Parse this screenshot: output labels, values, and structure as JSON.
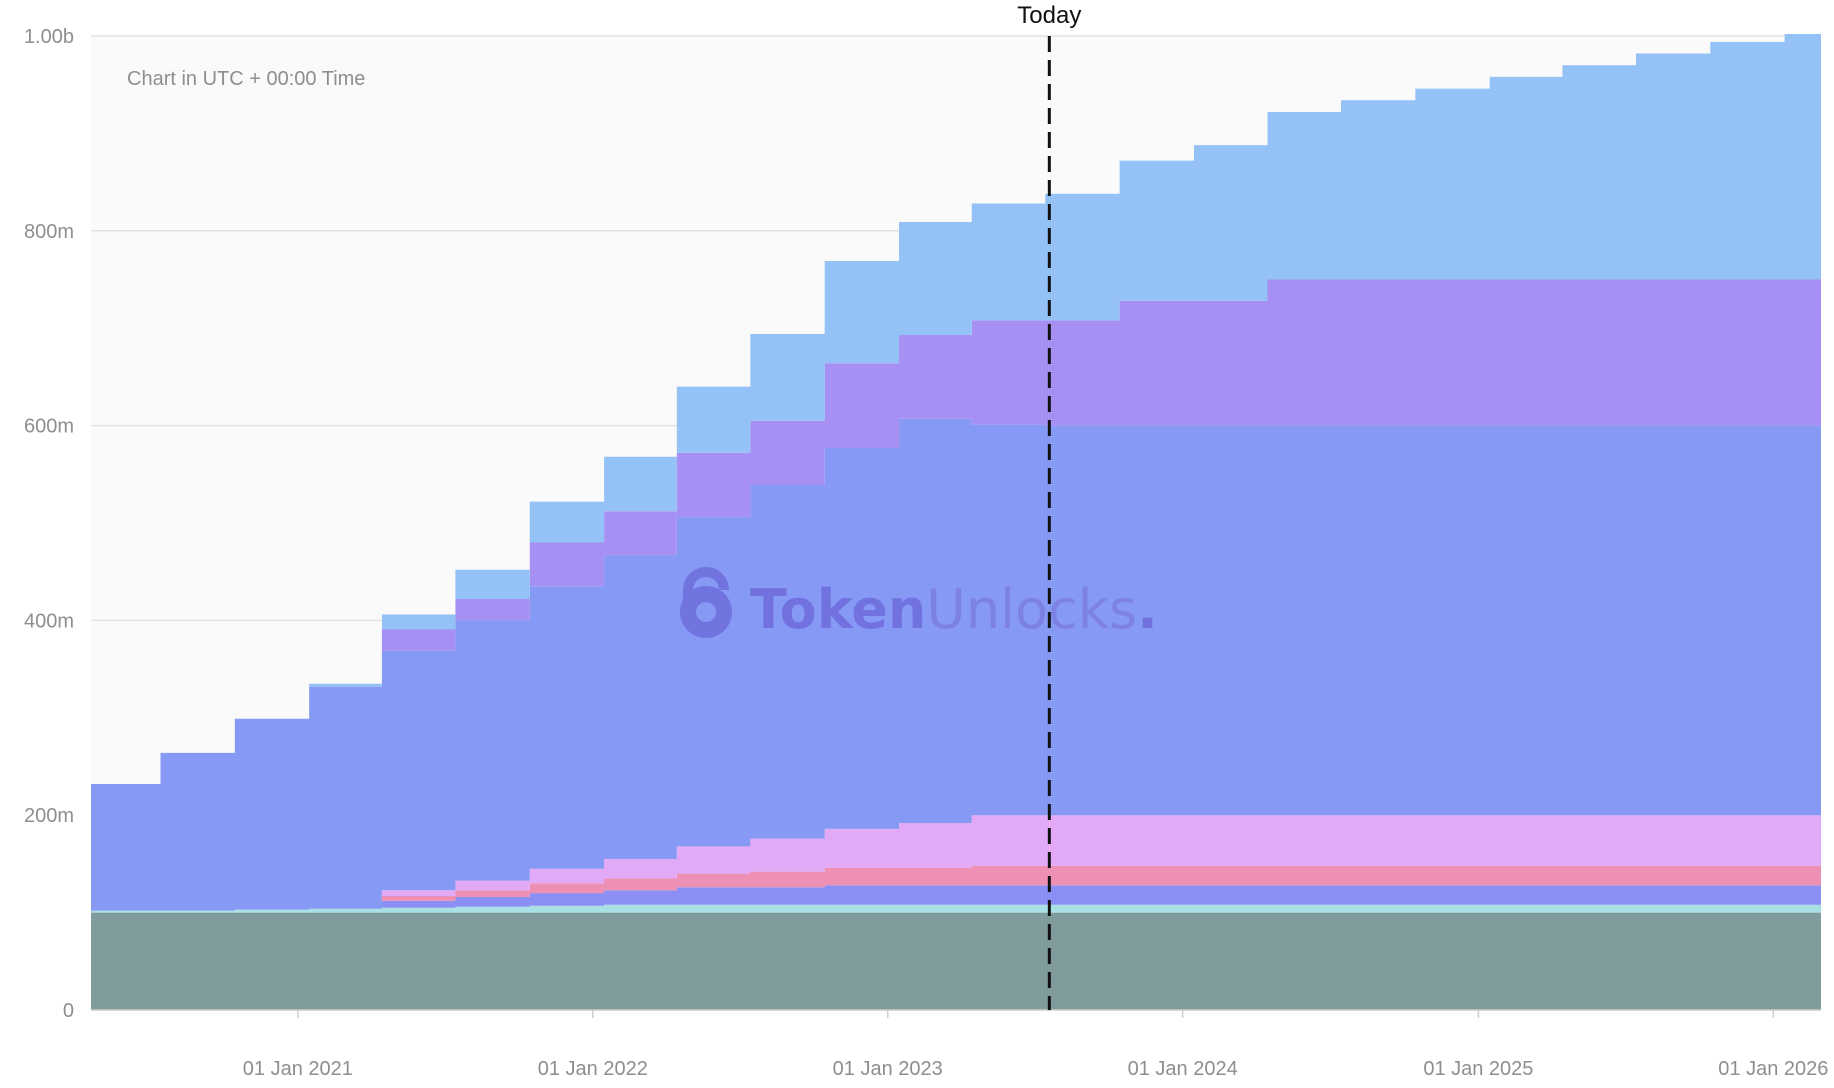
{
  "chart_data": {
    "type": "area",
    "stacked": true,
    "step": true,
    "note": "Chart in UTC + 00:00 Time",
    "watermark": {
      "brand_bold": "Token",
      "brand_light": "Unlocks",
      "suffix": "."
    },
    "today": {
      "label": "Today",
      "date": "2023-07-20"
    },
    "x_range": [
      "2020-04-20",
      "2026-03-01"
    ],
    "ylim": [
      0,
      1000000000
    ],
    "y_ticks": [
      {
        "value": 0,
        "label": "0"
      },
      {
        "value": 200000000,
        "label": "200m"
      },
      {
        "value": 400000000,
        "label": "400m"
      },
      {
        "value": 600000000,
        "label": "600m"
      },
      {
        "value": 800000000,
        "label": "800m"
      },
      {
        "value": 1000000000,
        "label": "1.00b"
      }
    ],
    "x_ticks": [
      {
        "date": "2021-01-01",
        "label": "01 Jan 2021"
      },
      {
        "date": "2022-01-01",
        "label": "01 Jan 2022"
      },
      {
        "date": "2023-01-01",
        "label": "01 Jan 2023"
      },
      {
        "date": "2024-01-01",
        "label": "01 Jan 2024"
      },
      {
        "date": "2025-01-01",
        "label": "01 Jan 2025"
      },
      {
        "date": "2026-01-01",
        "label": "01 Jan 2026"
      }
    ],
    "grid": true,
    "legend": "none",
    "x": [
      "2020-04-20",
      "2020-07-15",
      "2020-10-15",
      "2021-01-15",
      "2021-04-15",
      "2021-07-15",
      "2021-10-15",
      "2022-01-15",
      "2022-04-15",
      "2022-07-15",
      "2022-10-15",
      "2023-01-15",
      "2023-04-15",
      "2023-07-15",
      "2023-10-15",
      "2024-01-15",
      "2024-04-15",
      "2024-07-15",
      "2024-10-15",
      "2025-01-15",
      "2025-04-15",
      "2025-07-15",
      "2025-10-15",
      "2026-01-15"
    ],
    "series": [
      {
        "color": "#7f9b9b",
        "values": [
          100000000,
          100000000,
          100000000,
          100000000,
          100000000,
          100000000,
          100000000,
          100000000,
          100000000,
          100000000,
          100000000,
          100000000,
          100000000,
          100000000,
          100000000,
          100000000,
          100000000,
          100000000,
          100000000,
          100000000,
          100000000,
          100000000,
          100000000,
          100000000
        ]
      },
      {
        "color": "#a8e0e4",
        "values": [
          2000000,
          2000000,
          3000000,
          4000000,
          5000000,
          6000000,
          7000000,
          8000000,
          8000000,
          8000000,
          8000000,
          8000000,
          8000000,
          8000000,
          8000000,
          8000000,
          8000000,
          8000000,
          8000000,
          8000000,
          8000000,
          8000000,
          8000000,
          8000000
        ]
      },
      {
        "color": "#8b8ef2",
        "values": [
          0,
          0,
          0,
          0,
          7000000,
          10000000,
          13000000,
          15000000,
          18000000,
          18000000,
          20000000,
          20000000,
          20000000,
          20000000,
          20000000,
          20000000,
          20000000,
          20000000,
          20000000,
          20000000,
          20000000,
          20000000,
          20000000,
          20000000
        ]
      },
      {
        "color": "#ee8fb4",
        "values": [
          0,
          0,
          0,
          0,
          5000000,
          7000000,
          10000000,
          12000000,
          14000000,
          16000000,
          18000000,
          18000000,
          20000000,
          20000000,
          20000000,
          20000000,
          20000000,
          20000000,
          20000000,
          20000000,
          20000000,
          20000000,
          20000000,
          20000000
        ]
      },
      {
        "color": "#e2aaf6",
        "values": [
          0,
          0,
          0,
          0,
          6000000,
          10000000,
          15000000,
          20000000,
          28000000,
          34000000,
          40000000,
          46000000,
          52000000,
          52000000,
          52000000,
          52000000,
          52000000,
          52000000,
          52000000,
          52000000,
          52000000,
          52000000,
          52000000,
          52000000
        ]
      },
      {
        "color": "#8699f4",
        "values": [
          130000000,
          162000000,
          196000000,
          228000000,
          246000000,
          267000000,
          290000000,
          312000000,
          338000000,
          363000000,
          391000000,
          415000000,
          401000000,
          400000000,
          400000000,
          400000000,
          400000000,
          400000000,
          400000000,
          400000000,
          400000000,
          400000000,
          400000000,
          400000000
        ]
      },
      {
        "color": "#a790f4",
        "values": [
          0,
          0,
          0,
          0,
          22000000,
          22000000,
          45000000,
          45000000,
          66000000,
          66000000,
          87000000,
          86000000,
          107000000,
          108000000,
          128000000,
          128000000,
          150000000,
          150000000,
          150000000,
          150000000,
          150000000,
          150000000,
          150000000,
          150000000
        ]
      },
      {
        "color": "#94c2f7",
        "values": [
          0,
          0,
          0,
          3000000,
          15000000,
          30000000,
          42000000,
          56000000,
          68000000,
          89000000,
          105000000,
          116000000,
          120000000,
          130000000,
          144000000,
          160000000,
          172000000,
          184000000,
          196000000,
          208000000,
          220000000,
          232000000,
          244000000,
          252000000
        ]
      }
    ]
  }
}
